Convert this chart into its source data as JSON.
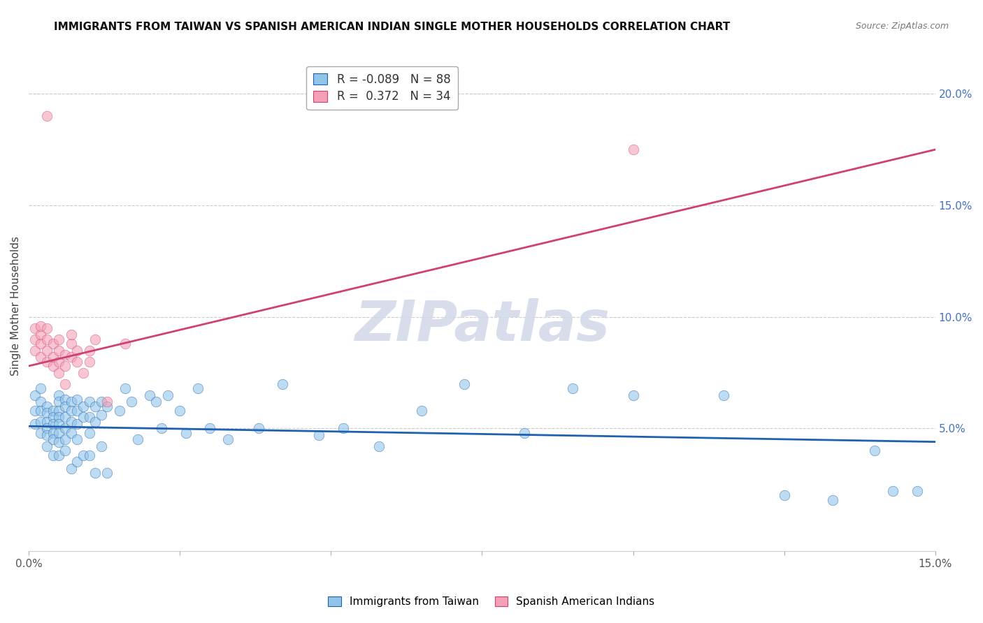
{
  "title": "IMMIGRANTS FROM TAIWAN VS SPANISH AMERICAN INDIAN SINGLE MOTHER HOUSEHOLDS CORRELATION CHART",
  "source": "Source: ZipAtlas.com",
  "ylabel": "Single Mother Households",
  "xlim": [
    0,
    0.15
  ],
  "ylim": [
    -0.005,
    0.215
  ],
  "yticks_right": [
    0.05,
    0.1,
    0.15,
    0.2
  ],
  "ytick_labels_right": [
    "5.0%",
    "10.0%",
    "15.0%",
    "20.0%"
  ],
  "taiwan_color": "#91c4e8",
  "spain_color": "#f4a0b5",
  "taiwan_line_color": "#2060b0",
  "spain_line_color": "#d04070",
  "taiwan_line_x": [
    0.0,
    0.15
  ],
  "taiwan_line_y": [
    0.051,
    0.044
  ],
  "spain_line_x": [
    0.0,
    0.15
  ],
  "spain_line_y": [
    0.078,
    0.175
  ],
  "watermark": "ZIPatlas",
  "background_color": "#ffffff",
  "grid_color": "#cccccc",
  "title_color": "#111111",
  "right_axis_color": "#4472c4",
  "taiwan_dots_x": [
    0.001,
    0.001,
    0.001,
    0.002,
    0.002,
    0.002,
    0.002,
    0.002,
    0.003,
    0.003,
    0.003,
    0.003,
    0.003,
    0.003,
    0.004,
    0.004,
    0.004,
    0.004,
    0.004,
    0.004,
    0.005,
    0.005,
    0.005,
    0.005,
    0.005,
    0.005,
    0.005,
    0.005,
    0.006,
    0.006,
    0.006,
    0.006,
    0.006,
    0.006,
    0.007,
    0.007,
    0.007,
    0.007,
    0.007,
    0.008,
    0.008,
    0.008,
    0.008,
    0.008,
    0.009,
    0.009,
    0.009,
    0.01,
    0.01,
    0.01,
    0.01,
    0.011,
    0.011,
    0.011,
    0.012,
    0.012,
    0.012,
    0.013,
    0.013,
    0.015,
    0.016,
    0.017,
    0.018,
    0.02,
    0.021,
    0.022,
    0.023,
    0.025,
    0.026,
    0.028,
    0.03,
    0.033,
    0.038,
    0.042,
    0.048,
    0.052,
    0.058,
    0.065,
    0.072,
    0.082,
    0.09,
    0.1,
    0.115,
    0.125,
    0.133,
    0.14,
    0.143,
    0.147
  ],
  "taiwan_dots_y": [
    0.065,
    0.058,
    0.052,
    0.068,
    0.062,
    0.058,
    0.053,
    0.048,
    0.06,
    0.057,
    0.053,
    0.05,
    0.047,
    0.042,
    0.058,
    0.055,
    0.052,
    0.048,
    0.045,
    0.038,
    0.065,
    0.062,
    0.058,
    0.055,
    0.052,
    0.048,
    0.044,
    0.038,
    0.063,
    0.06,
    0.055,
    0.05,
    0.045,
    0.04,
    0.062,
    0.058,
    0.053,
    0.048,
    0.032,
    0.063,
    0.058,
    0.052,
    0.045,
    0.035,
    0.06,
    0.055,
    0.038,
    0.062,
    0.055,
    0.048,
    0.038,
    0.06,
    0.053,
    0.03,
    0.062,
    0.056,
    0.042,
    0.06,
    0.03,
    0.058,
    0.068,
    0.062,
    0.045,
    0.065,
    0.062,
    0.05,
    0.065,
    0.058,
    0.048,
    0.068,
    0.05,
    0.045,
    0.05,
    0.07,
    0.047,
    0.05,
    0.042,
    0.058,
    0.07,
    0.048,
    0.068,
    0.065,
    0.065,
    0.02,
    0.018,
    0.04,
    0.022,
    0.022
  ],
  "spain_dots_x": [
    0.001,
    0.001,
    0.001,
    0.002,
    0.002,
    0.002,
    0.002,
    0.003,
    0.003,
    0.003,
    0.003,
    0.004,
    0.004,
    0.004,
    0.005,
    0.005,
    0.005,
    0.005,
    0.006,
    0.006,
    0.006,
    0.007,
    0.007,
    0.007,
    0.008,
    0.008,
    0.009,
    0.01,
    0.01,
    0.011,
    0.013,
    0.016,
    0.1,
    0.003
  ],
  "spain_dots_y": [
    0.09,
    0.095,
    0.085,
    0.088,
    0.092,
    0.096,
    0.082,
    0.08,
    0.085,
    0.09,
    0.095,
    0.078,
    0.082,
    0.088,
    0.075,
    0.08,
    0.085,
    0.09,
    0.078,
    0.083,
    0.07,
    0.082,
    0.088,
    0.092,
    0.08,
    0.085,
    0.075,
    0.08,
    0.085,
    0.09,
    0.062,
    0.088,
    0.175,
    0.19
  ]
}
